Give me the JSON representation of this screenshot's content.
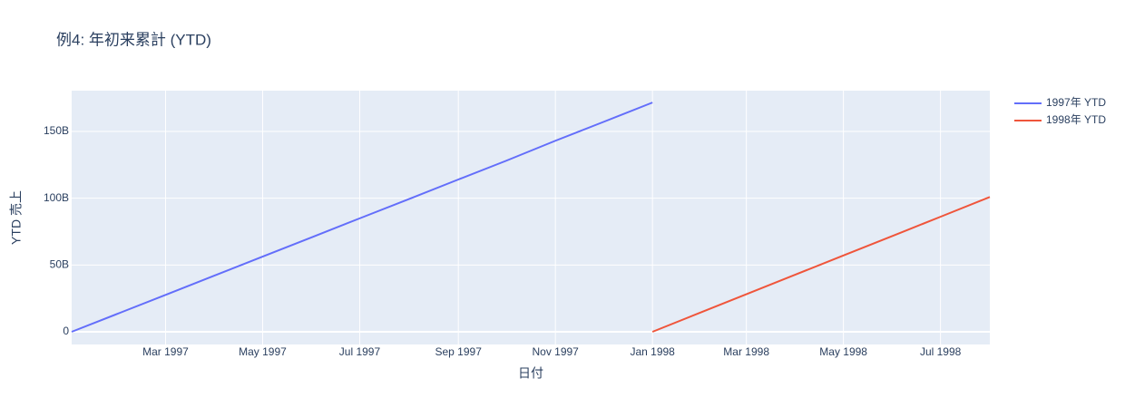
{
  "chart_data": {
    "type": "line",
    "title": "例4: 年初来累計 (YTD)",
    "x_label": "日付",
    "y_label": "YTD 売上",
    "grid": true,
    "legend": "top-right",
    "background": "#e5ecf6",
    "xlim": [
      "1997-01",
      "1998-08"
    ],
    "xticks": [
      {
        "value": "1997-03",
        "label": "Mar 1997"
      },
      {
        "value": "1997-05",
        "label": "May 1997"
      },
      {
        "value": "1997-07",
        "label": "Jul 1997"
      },
      {
        "value": "1997-09",
        "label": "Sep 1997"
      },
      {
        "value": "1997-11",
        "label": "Nov 1997"
      },
      {
        "value": "1998-01",
        "label": "Jan 1998"
      },
      {
        "value": "1998-03",
        "label": "Mar 1998"
      },
      {
        "value": "1998-05",
        "label": "May 1998"
      },
      {
        "value": "1998-07",
        "label": "Jul 1998"
      }
    ],
    "ylim": [
      -9500000000,
      180500000000
    ],
    "yticks": [
      0,
      {
        "value": 50000000000,
        "label": "50B"
      },
      {
        "value": 100000000000,
        "label": "100B"
      },
      {
        "value": 150000000000,
        "label": "150B"
      }
    ],
    "series": [
      {
        "name": "1997年 YTD",
        "color": "#636efa",
        "x": [
          "1997-01",
          "1997-02",
          "1997-03",
          "1997-04",
          "1997-05",
          "1997-06",
          "1997-07",
          "1997-08",
          "1997-09",
          "1997-10",
          "1997-11",
          "1997-12",
          "1998-01"
        ],
        "values": [
          0,
          14500000000,
          27600000000,
          42200000000,
          56300000000,
          70800000000,
          84900000000,
          99400000000,
          114000000000,
          128000000000,
          143000000000,
          157000000000,
          171600000000
        ]
      },
      {
        "name": "1998年 YTD",
        "color": "#ef553b",
        "x": [
          "1998-01",
          "1998-02",
          "1998-03",
          "1998-04",
          "1998-05",
          "1998-06",
          "1998-07",
          "1998-08"
        ],
        "values": [
          0,
          14800000000,
          28100000000,
          42900000000,
          57100000000,
          71800000000,
          86100000000,
          100900000000
        ]
      }
    ]
  }
}
